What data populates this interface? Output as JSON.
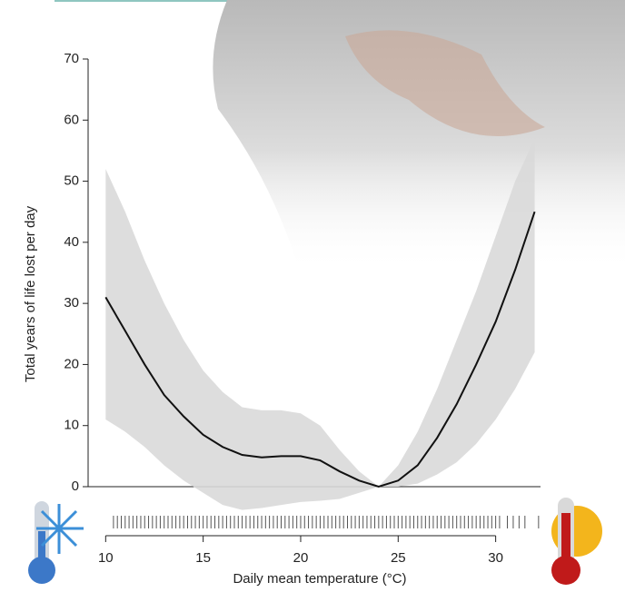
{
  "chart_data": {
    "type": "line",
    "x_label": "Daily mean temperature (°C)",
    "y_label": "Total years of life lost per day",
    "x": [
      10,
      11,
      12,
      13,
      14,
      15,
      16,
      17,
      18,
      19,
      20,
      21,
      22,
      23,
      24,
      25,
      26,
      27,
      28,
      29,
      30,
      31,
      32
    ],
    "values": [
      31,
      25.5,
      20,
      15,
      11.5,
      8.5,
      6.5,
      5.2,
      4.8,
      5,
      5,
      4.3,
      2.5,
      1,
      0,
      1,
      3.5,
      8,
      13.5,
      20,
      27,
      35.5,
      45
    ],
    "upper": [
      52,
      45,
      37,
      30,
      24,
      19,
      15.5,
      13,
      12.5,
      12.5,
      12,
      10,
      6,
      2.5,
      0,
      3.5,
      9,
      16,
      24,
      32,
      41,
      50,
      57
    ],
    "lower": [
      11,
      9,
      6.5,
      3.5,
      1,
      -1,
      -3,
      -3.8,
      -3.5,
      -3,
      -2.5,
      -2.3,
      -2,
      -1,
      0,
      0,
      0.5,
      2,
      4,
      7,
      11,
      16,
      22
    ],
    "rug": [
      10.4,
      10.6,
      10.8,
      11.0,
      11.2,
      11.4,
      11.6,
      11.8,
      12.0,
      12.2,
      12.4,
      12.6,
      12.8,
      13.0,
      13.2,
      13.4,
      13.6,
      13.8,
      14.0,
      14.2,
      14.4,
      14.6,
      14.8,
      15.0,
      15.2,
      15.4,
      15.6,
      15.8,
      16.0,
      16.2,
      16.4,
      16.6,
      16.8,
      17.0,
      17.2,
      17.4,
      17.6,
      17.8,
      18.0,
      18.2,
      18.4,
      18.6,
      18.8,
      19.0,
      19.2,
      19.4,
      19.6,
      19.8,
      20.0,
      20.2,
      20.4,
      20.6,
      20.8,
      21.0,
      21.2,
      21.4,
      21.6,
      21.8,
      22.0,
      22.2,
      22.4,
      22.6,
      22.8,
      23.0,
      23.2,
      23.4,
      23.6,
      23.8,
      24.0,
      24.2,
      24.4,
      24.6,
      24.8,
      25.0,
      25.2,
      25.4,
      25.6,
      25.8,
      26.0,
      26.2,
      26.4,
      26.6,
      26.8,
      27.0,
      27.2,
      27.4,
      27.6,
      27.8,
      28.0,
      28.2,
      28.4,
      28.6,
      28.8,
      29.0,
      29.2,
      29.4,
      29.6,
      29.8,
      30.0,
      30.2,
      30.6,
      30.9,
      31.2,
      31.5,
      32.2
    ],
    "line_color": "#111111",
    "band_color": "#d9d9d9",
    "xlim": [
      9.1,
      32.3
    ],
    "ylim": [
      0,
      70
    ],
    "xticks": [
      10,
      15,
      20,
      25,
      30
    ],
    "yticks": [
      0,
      10,
      20,
      30,
      40,
      50,
      60,
      70
    ]
  }
}
